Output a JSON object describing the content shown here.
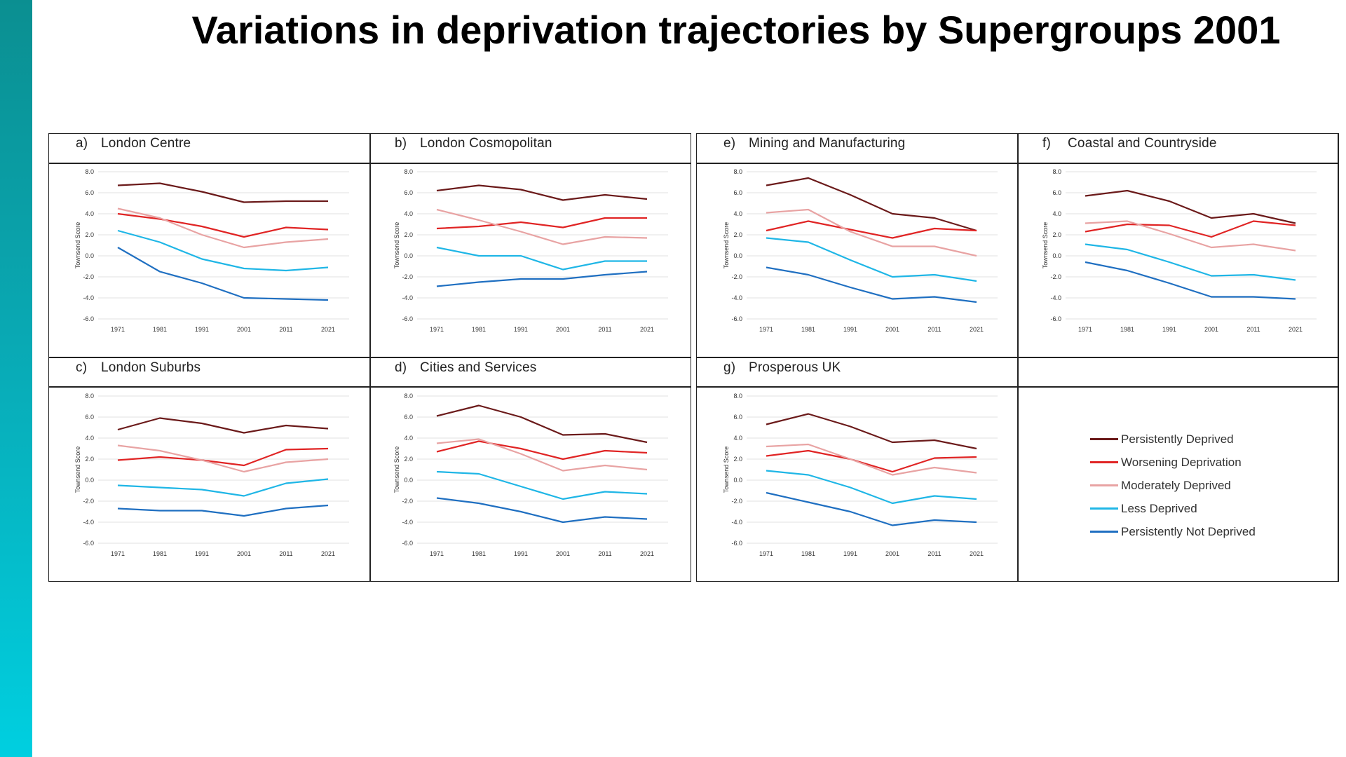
{
  "title": "Variations in deprivation trajectories by Supergroups 2001",
  "colors": {
    "persistently_deprived": "#6b1a1a",
    "worsening_deprivation": "#e02424",
    "moderately_deprived": "#e8a3a3",
    "less_deprived": "#1fb6e6",
    "persistently_not_deprived": "#1f6fc1"
  },
  "legend": [
    {
      "label": "Persistently Deprived",
      "color": "#6b1a1a"
    },
    {
      "label": "Worsening Deprivation",
      "color": "#e02424"
    },
    {
      "label": "Moderately Deprived",
      "color": "#e8a3a3"
    },
    {
      "label": "Less Deprived",
      "color": "#1fb6e6"
    },
    {
      "label": "Persistently Not Deprived",
      "color": "#1f6fc1"
    }
  ],
  "panels": [
    {
      "letter": "a)",
      "title": "London Centre"
    },
    {
      "letter": "b)",
      "title": "London Cosmopolitan"
    },
    {
      "letter": "c)",
      "title": "London Suburbs"
    },
    {
      "letter": "d)",
      "title": "Cities and Services"
    },
    {
      "letter": "e)",
      "title": "Mining and Manufacturing"
    },
    {
      "letter": "f)",
      "title": "Coastal and Countryside"
    },
    {
      "letter": "g)",
      "title": "Prosperous UK"
    }
  ],
  "chart_data": [
    {
      "type": "line",
      "title": "London Centre",
      "x": [
        "1971",
        "1981",
        "1991",
        "2001",
        "2011",
        "2021"
      ],
      "ylabel": "Townsend Score",
      "ylim": [
        -6,
        8
      ],
      "yticks": [
        "8.0",
        "6.0",
        "4.0",
        "2.0",
        "0.0",
        "-2.0",
        "-4.0",
        "-6.0"
      ],
      "grid": true,
      "series": [
        {
          "name": "Persistently Deprived",
          "values": [
            6.7,
            6.9,
            6.1,
            5.1,
            5.2,
            5.2
          ]
        },
        {
          "name": "Worsening Deprivation",
          "values": [
            4.0,
            3.5,
            2.8,
            1.8,
            2.7,
            2.5
          ]
        },
        {
          "name": "Moderately Deprived",
          "values": [
            4.5,
            3.6,
            2.0,
            0.8,
            1.3,
            1.6
          ]
        },
        {
          "name": "Less Deprived",
          "values": [
            2.4,
            1.3,
            -0.3,
            -1.2,
            -1.4,
            -1.1
          ]
        },
        {
          "name": "Persistently Not Deprived",
          "values": [
            0.8,
            -1.5,
            -2.6,
            -4.0,
            -4.1,
            -4.2
          ]
        }
      ]
    },
    {
      "type": "line",
      "title": "London Cosmopolitan",
      "x": [
        "1971",
        "1981",
        "1991",
        "2001",
        "2011",
        "2021"
      ],
      "ylabel": "Townsend Score",
      "ylim": [
        -6,
        8
      ],
      "yticks": [
        "8.0",
        "6.0",
        "4.0",
        "2.0",
        "0.0",
        "-2.0",
        "-4.0",
        "-6.0"
      ],
      "grid": true,
      "series": [
        {
          "name": "Persistently Deprived",
          "values": [
            6.2,
            6.7,
            6.3,
            5.3,
            5.8,
            5.4
          ]
        },
        {
          "name": "Worsening Deprivation",
          "values": [
            2.6,
            2.8,
            3.2,
            2.7,
            3.6,
            3.6
          ]
        },
        {
          "name": "Moderately Deprived",
          "values": [
            4.4,
            3.4,
            2.3,
            1.1,
            1.8,
            1.7
          ]
        },
        {
          "name": "Less Deprived",
          "values": [
            0.8,
            0.0,
            0.0,
            -1.3,
            -0.5,
            -0.5
          ]
        },
        {
          "name": "Persistently Not Deprived",
          "values": [
            -2.9,
            -2.5,
            -2.2,
            -2.2,
            -1.8,
            -1.5
          ]
        }
      ]
    },
    {
      "type": "line",
      "title": "London Suburbs",
      "x": [
        "1971",
        "1981",
        "1991",
        "2001",
        "2011",
        "2021"
      ],
      "ylabel": "Townsend Score",
      "ylim": [
        -6,
        8
      ],
      "yticks": [
        "8.0",
        "6.0",
        "4.0",
        "2.0",
        "0.0",
        "-2.0",
        "-4.0",
        "-6.0"
      ],
      "grid": true,
      "series": [
        {
          "name": "Persistently Deprived",
          "values": [
            4.8,
            5.9,
            5.4,
            4.5,
            5.2,
            4.9
          ]
        },
        {
          "name": "Worsening Deprivation",
          "values": [
            1.9,
            2.2,
            1.9,
            1.4,
            2.9,
            3.0
          ]
        },
        {
          "name": "Moderately Deprived",
          "values": [
            3.3,
            2.8,
            1.9,
            0.8,
            1.7,
            2.0
          ]
        },
        {
          "name": "Less Deprived",
          "values": [
            -0.5,
            -0.7,
            -0.9,
            -1.5,
            -0.3,
            0.1
          ]
        },
        {
          "name": "Persistently Not Deprived",
          "values": [
            -2.7,
            -2.9,
            -2.9,
            -3.4,
            -2.7,
            -2.4
          ]
        }
      ]
    },
    {
      "type": "line",
      "title": "Cities and Services",
      "x": [
        "1971",
        "1981",
        "1991",
        "2001",
        "2011",
        "2021"
      ],
      "ylabel": "Townsend Score",
      "ylim": [
        -6,
        8
      ],
      "yticks": [
        "8.0",
        "6.0",
        "4.0",
        "2.0",
        "0.0",
        "-2.0",
        "-4.0",
        "-6.0"
      ],
      "grid": true,
      "series": [
        {
          "name": "Persistently Deprived",
          "values": [
            6.1,
            7.1,
            6.0,
            4.3,
            4.4,
            3.6
          ]
        },
        {
          "name": "Worsening Deprivation",
          "values": [
            2.7,
            3.7,
            3.0,
            2.0,
            2.8,
            2.6
          ]
        },
        {
          "name": "Moderately Deprived",
          "values": [
            3.5,
            3.9,
            2.5,
            0.9,
            1.4,
            1.0
          ]
        },
        {
          "name": "Less Deprived",
          "values": [
            0.8,
            0.6,
            -0.6,
            -1.8,
            -1.1,
            -1.3
          ]
        },
        {
          "name": "Persistently Not Deprived",
          "values": [
            -1.7,
            -2.2,
            -3.0,
            -4.0,
            -3.5,
            -3.7
          ]
        }
      ]
    },
    {
      "type": "line",
      "title": "Mining and Manufacturing",
      "x": [
        "1971",
        "1981",
        "1991",
        "2001",
        "2011",
        "2021"
      ],
      "ylabel": "Townsend Score",
      "ylim": [
        -6,
        8
      ],
      "yticks": [
        "8.0",
        "6.0",
        "4.0",
        "2.0",
        "0.0",
        "-2.0",
        "-4.0",
        "-6.0"
      ],
      "grid": true,
      "series": [
        {
          "name": "Persistently Deprived",
          "values": [
            6.7,
            7.4,
            5.8,
            4.0,
            3.6,
            2.4
          ]
        },
        {
          "name": "Worsening Deprivation",
          "values": [
            2.4,
            3.3,
            2.5,
            1.7,
            2.6,
            2.4
          ]
        },
        {
          "name": "Moderately Deprived",
          "values": [
            4.1,
            4.4,
            2.3,
            0.9,
            0.9,
            0.0
          ]
        },
        {
          "name": "Less Deprived",
          "values": [
            1.7,
            1.3,
            -0.4,
            -2.0,
            -1.8,
            -2.4
          ]
        },
        {
          "name": "Persistently Not Deprived",
          "values": [
            -1.1,
            -1.8,
            -3.0,
            -4.1,
            -3.9,
            -4.4
          ]
        }
      ]
    },
    {
      "type": "line",
      "title": "Coastal and Countryside",
      "x": [
        "1971",
        "1981",
        "1991",
        "2001",
        "2011",
        "2021"
      ],
      "ylabel": "Townsend Score",
      "ylim": [
        -6,
        8
      ],
      "yticks": [
        "8.0",
        "6.0",
        "4.0",
        "2.0",
        "0.0",
        "-2.0",
        "-4.0",
        "-6.0"
      ],
      "grid": true,
      "series": [
        {
          "name": "Persistently Deprived",
          "values": [
            5.7,
            6.2,
            5.2,
            3.6,
            4.0,
            3.1
          ]
        },
        {
          "name": "Worsening Deprivation",
          "values": [
            2.3,
            3.0,
            2.9,
            1.8,
            3.3,
            2.9
          ]
        },
        {
          "name": "Moderately Deprived",
          "values": [
            3.1,
            3.3,
            2.1,
            0.8,
            1.1,
            0.5
          ]
        },
        {
          "name": "Less Deprived",
          "values": [
            1.1,
            0.6,
            -0.6,
            -1.9,
            -1.8,
            -2.3
          ]
        },
        {
          "name": "Persistently Not Deprived",
          "values": [
            -0.6,
            -1.4,
            -2.6,
            -3.9,
            -3.9,
            -4.1
          ]
        }
      ]
    },
    {
      "type": "line",
      "title": "Prosperous UK",
      "x": [
        "1971",
        "1981",
        "1991",
        "2001",
        "2011",
        "2021"
      ],
      "ylabel": "Townsend Score",
      "ylim": [
        -6,
        8
      ],
      "yticks": [
        "8.0",
        "6.0",
        "4.0",
        "2.0",
        "0.0",
        "-2.0",
        "-4.0",
        "-6.0"
      ],
      "grid": true,
      "series": [
        {
          "name": "Persistently Deprived",
          "values": [
            5.3,
            6.3,
            5.1,
            3.6,
            3.8,
            3.0
          ]
        },
        {
          "name": "Worsening Deprivation",
          "values": [
            2.3,
            2.8,
            2.0,
            0.8,
            2.1,
            2.2
          ]
        },
        {
          "name": "Moderately Deprived",
          "values": [
            3.2,
            3.4,
            2.0,
            0.5,
            1.2,
            0.7
          ]
        },
        {
          "name": "Less Deprived",
          "values": [
            0.9,
            0.5,
            -0.7,
            -2.2,
            -1.5,
            -1.8
          ]
        },
        {
          "name": "Persistently Not Deprived",
          "values": [
            -1.2,
            -2.1,
            -3.0,
            -4.3,
            -3.8,
            -4.0
          ]
        }
      ]
    }
  ]
}
